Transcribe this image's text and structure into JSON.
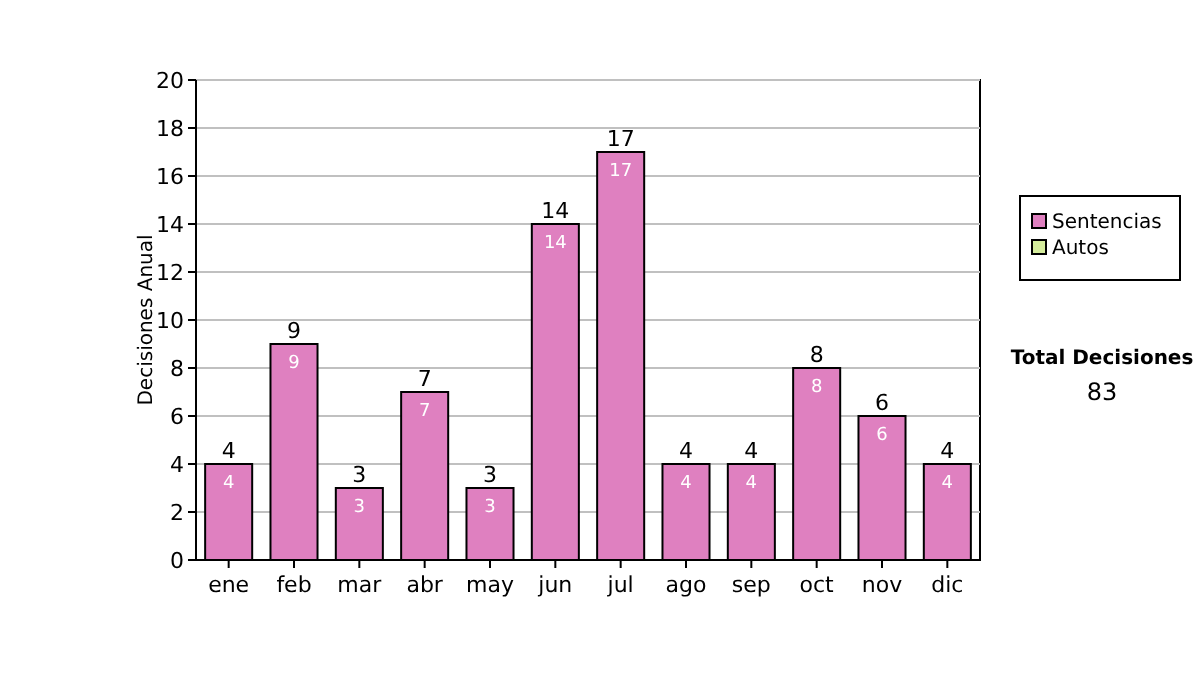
{
  "chart_data": {
    "type": "bar",
    "stacked": true,
    "ylabel": "Decisiones Anual",
    "categories": [
      "ene",
      "feb",
      "mar",
      "abr",
      "may",
      "jun",
      "jul",
      "ago",
      "sep",
      "oct",
      "nov",
      "dic"
    ],
    "series": [
      {
        "name": "Sentencias",
        "color": "#df80c0",
        "values": [
          4,
          9,
          3,
          7,
          3,
          14,
          17,
          4,
          4,
          8,
          6,
          4
        ],
        "value_labels": [
          "4",
          "9",
          "3",
          "7",
          "3",
          "14",
          "17",
          "4",
          "4",
          "8",
          "6",
          "4"
        ]
      },
      {
        "name": "Autos",
        "color": "#d4ec9c",
        "values": [
          0,
          0,
          0,
          0,
          0,
          0,
          0,
          0,
          0,
          0,
          0,
          0
        ]
      }
    ],
    "totals": [
      "4",
      "9",
      "3",
      "7",
      "3",
      "14",
      "17",
      "4",
      "4",
      "8",
      "6",
      "4"
    ],
    "ylim": [
      0,
      20
    ],
    "yticks": [
      0,
      2,
      4,
      6,
      8,
      10,
      12,
      14,
      16,
      18,
      20
    ],
    "grid": "y",
    "legend": "right",
    "annotations": [
      "Total Decisiones",
      "83"
    ]
  }
}
